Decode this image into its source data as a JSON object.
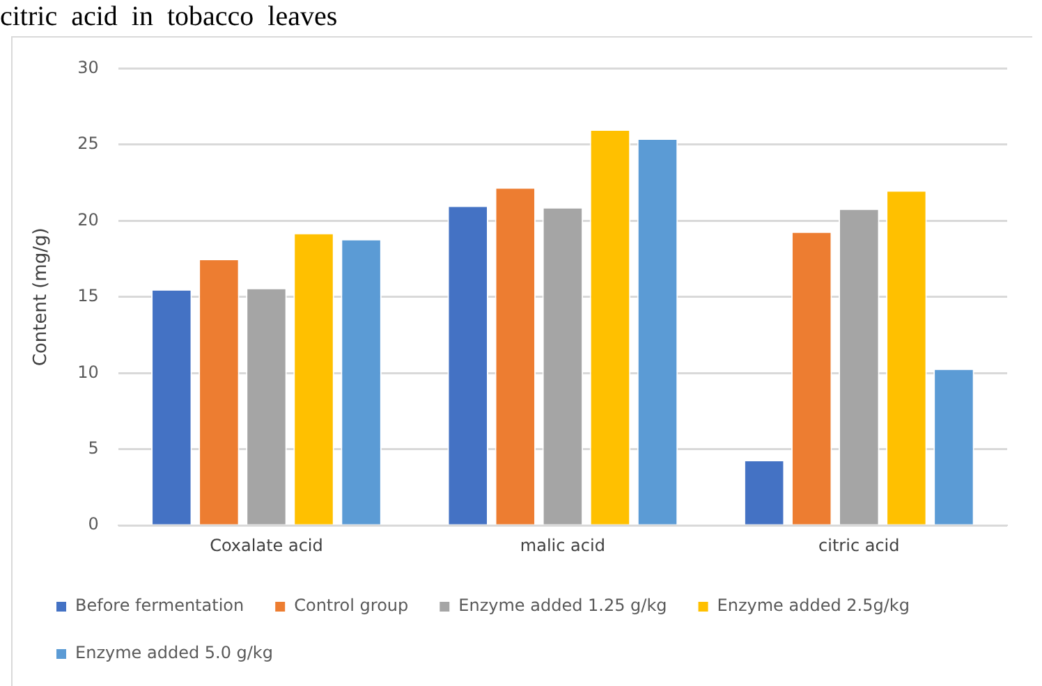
{
  "chart_data": {
    "type": "bar",
    "ylabel": "Content (mg/g)",
    "annotations": [
      "citric  acid  in  tobacco  leaves"
    ],
    "categories": [
      "Coxalate acid",
      "malic acid",
      "citric acid"
    ],
    "series": [
      {
        "name": "Before fermentation",
        "color": "#4472c4",
        "values": [
          15.5,
          21.0,
          4.3
        ]
      },
      {
        "name": "Control group",
        "color": "#ed7d31",
        "values": [
          17.5,
          22.2,
          19.3
        ]
      },
      {
        "name": "Enzyme added 1.25 g/kg",
        "color": "#a5a5a5",
        "values": [
          15.6,
          20.9,
          20.8
        ]
      },
      {
        "name": "Enzyme added 2.5g/kg",
        "color": "#ffc000",
        "values": [
          19.2,
          26.0,
          22.0
        ]
      },
      {
        "name": "Enzyme added 5.0 g/kg",
        "color": "#5b9bd5",
        "values": [
          18.8,
          25.4,
          10.3
        ]
      }
    ],
    "ylim": [
      0,
      30
    ],
    "yticks": [
      0,
      5,
      10,
      15,
      20,
      25,
      30
    ],
    "grid": "y",
    "legend": "bottom"
  }
}
